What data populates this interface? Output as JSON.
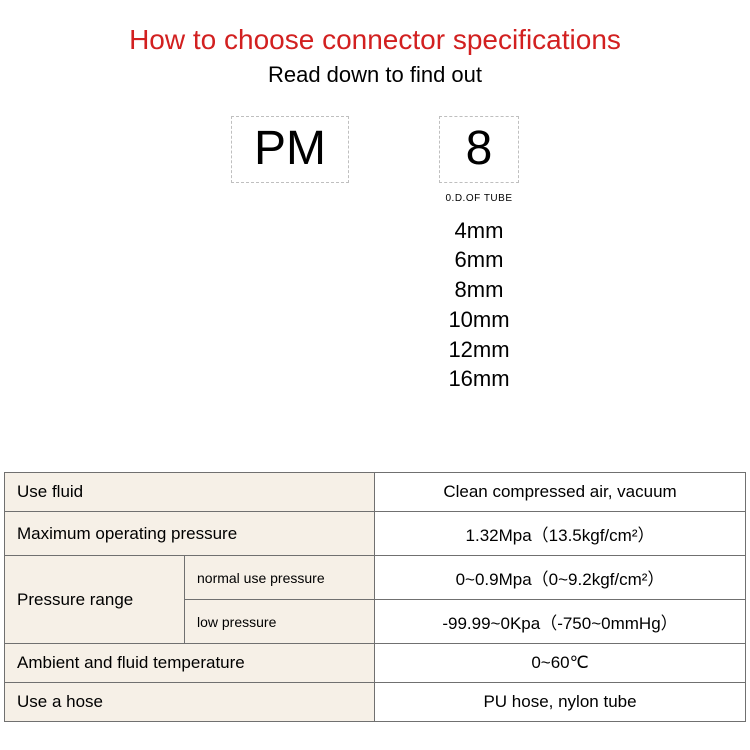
{
  "header": {
    "title": "How to choose connector specifications",
    "title_color": "#d22020",
    "subtitle": "Read down to find out"
  },
  "codes": {
    "left_box": "PM",
    "right_box": "8",
    "od_label": "0.D.OF TUBE",
    "sizes": [
      "4mm",
      "6mm",
      "8mm",
      "10mm",
      "12mm",
      "16mm"
    ]
  },
  "table": {
    "bg_label": "#f6f0e7",
    "border_color": "#707070",
    "rows": [
      {
        "label": "Use fluid",
        "value": "Clean compressed air, vacuum"
      },
      {
        "label": "Maximum operating pressure",
        "value": "1.32Mpa（13.5kgf/cm²）"
      },
      {
        "label": "Pressure range",
        "sub": [
          {
            "sublabel": "normal use pressure",
            "value": "0~0.9Mpa（0~9.2kgf/cm²）"
          },
          {
            "sublabel": "low pressure",
            "value": "-99.99~0Kpa（-750~0mmHg）"
          }
        ]
      },
      {
        "label": "Ambient and fluid temperature",
        "value": "0~60℃"
      },
      {
        "label": "Use a hose",
        "value": "PU hose, nylon tube"
      }
    ]
  }
}
